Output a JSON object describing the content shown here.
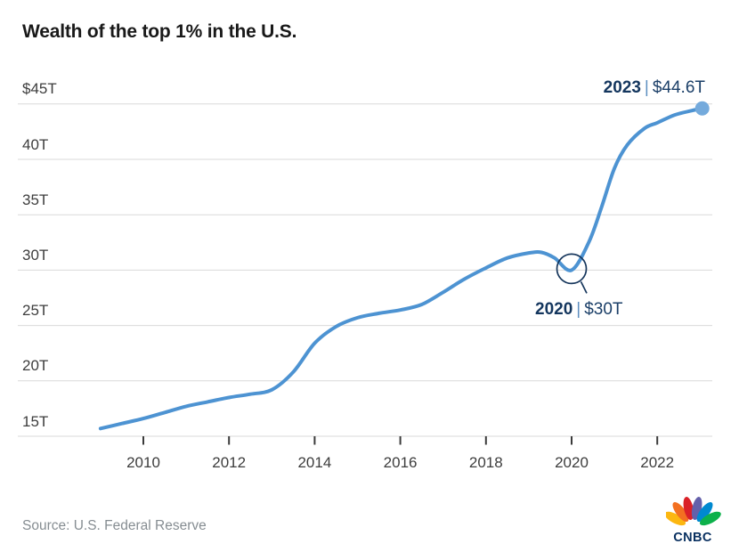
{
  "page": {
    "title": "Wealth of the top 1% in the U.S."
  },
  "chart_data": {
    "type": "line",
    "title": "Wealth of the top 1% in the U.S.",
    "unit": "USD trillions",
    "grid": "horizontal",
    "legend": "none",
    "xlim": [
      2009,
      2023.05
    ],
    "ylim": [
      15,
      45
    ],
    "series": [
      {
        "name": "Wealth of the top 1%",
        "x": [
          2009,
          2009.5,
          2010,
          2010.5,
          2011,
          2011.5,
          2012,
          2012.5,
          2013,
          2013.5,
          2014,
          2014.5,
          2015,
          2015.5,
          2016,
          2016.5,
          2017,
          2017.5,
          2018,
          2018.5,
          2019,
          2019.3,
          2019.6,
          2020,
          2020.4,
          2020.7,
          2021,
          2021.3,
          2021.7,
          2022,
          2022.4,
          2022.8,
          2023.05
        ],
        "y": [
          15.7,
          16.15,
          16.6,
          17.15,
          17.7,
          18.1,
          18.5,
          18.8,
          19.2,
          20.8,
          23.4,
          24.9,
          25.7,
          26.1,
          26.4,
          26.9,
          28.0,
          29.2,
          30.2,
          31.1,
          31.55,
          31.6,
          31.1,
          30.0,
          32.5,
          35.7,
          39.2,
          41.3,
          42.8,
          43.3,
          44.0,
          44.4,
          44.6
        ]
      }
    ],
    "yticks": {
      "values": [
        45,
        40,
        35,
        30,
        25,
        20,
        15
      ],
      "labels": [
        "$45T",
        "40T",
        "35T",
        "30T",
        "25T",
        "20T",
        "15T"
      ]
    },
    "xticks": {
      "values": [
        2010,
        2012,
        2014,
        2016,
        2018,
        2020,
        2022
      ],
      "labels": [
        "2010",
        "2012",
        "2014",
        "2016",
        "2018",
        "2020",
        "2022"
      ]
    },
    "annotations": [
      {
        "name": "peak-2023",
        "year_label": "2023",
        "separator": "|",
        "value_label": "$44.6T",
        "x": 2023.05,
        "y": 44.6,
        "marker": "endpoint-dot"
      },
      {
        "name": "dip-2020",
        "year_label": "2020",
        "separator": "|",
        "value_label": "$30T",
        "x": 2020,
        "y": 30,
        "marker": "circle-outline"
      }
    ],
    "colors": {
      "line": "#4d93d2",
      "endpoint_dot": "#74aadc",
      "gridline": "#d9d9d9",
      "tick": "#3a3a3a",
      "axis_text": "#3d3d3d",
      "title_text": "#191919",
      "annotation_year": "#14365e",
      "annotation_value": "#1b3f68",
      "annotation_separator": "#5d8fc0",
      "annotation_circle": "#16365c",
      "source_text": "#868d92"
    }
  },
  "footer": {
    "source": "Source: U.S. Federal Reserve",
    "logo_text": "CNBC",
    "logo_colors": {
      "yellow": "#FCB711",
      "orange": "#F37021",
      "red": "#DA2128",
      "purple": "#6460AA",
      "blue": "#0089D0",
      "green": "#0DB14B",
      "wordmark": "#0a3161"
    }
  }
}
